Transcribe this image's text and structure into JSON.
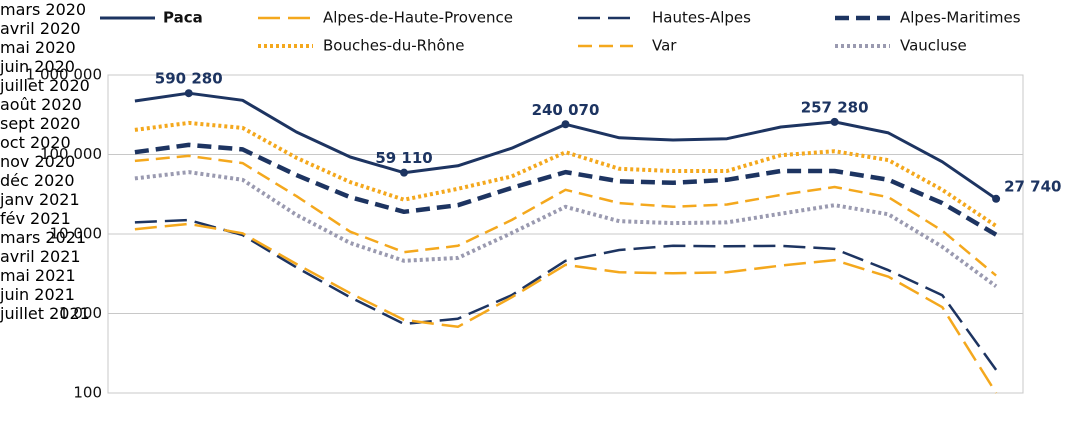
{
  "chart_data": {
    "type": "line",
    "log_y": true,
    "grid": true,
    "categories": [
      "mars 2020",
      "avril 2020",
      "mai 2020",
      "juin 2020",
      "juillet 2020",
      "août 2020",
      "sept 2020",
      "oct 2020",
      "nov 2020",
      "déc 2020",
      "janv 2021",
      "fév 2021",
      "mars 2021",
      "avril 2021",
      "mai 2021",
      "juin 2021",
      "juillet 2021"
    ],
    "ylim": [
      100,
      1000000
    ],
    "yticks": [
      100,
      {
        "value": 1000,
        "label": "1 000"
      },
      {
        "value": 10000,
        "label": "10 000"
      },
      {
        "value": 100000,
        "label": "100 000"
      },
      {
        "value": 1000000,
        "label": "1 000 000"
      }
    ],
    "series": [
      {
        "name": "Paca",
        "color": "#1d3461",
        "style": "solid",
        "values": [
          471000,
          590280,
          480000,
          192000,
          93000,
          59110,
          72000,
          120000,
          240070,
          162000,
          152000,
          158000,
          222000,
          257280,
          187000,
          81000,
          27740
        ],
        "value_labels": [
          null,
          "590 280",
          null,
          null,
          null,
          "59 110",
          null,
          null,
          "240 070",
          null,
          null,
          null,
          null,
          "257 280",
          null,
          null,
          "27 740"
        ]
      },
      {
        "name": "Alpes-de-Haute-Provence",
        "color": "#f4a81d",
        "style": "long-dash",
        "values": [
          11500,
          13400,
          10200,
          4200,
          1800,
          830,
          680,
          1600,
          4100,
          3300,
          3200,
          3300,
          4000,
          4700,
          2900,
          1200,
          100
        ]
      },
      {
        "name": "Hautes-Alpes",
        "color": "#1d3461",
        "style": "long-dash",
        "values": [
          14000,
          15000,
          9700,
          3800,
          1600,
          740,
          860,
          1700,
          4600,
          6300,
          7100,
          7000,
          7100,
          6500,
          3500,
          1700,
          195
        ]
      },
      {
        "name": "Alpes-Maritimes",
        "color": "#1d3461",
        "style": "thick-dash",
        "values": [
          107000,
          132000,
          116000,
          55000,
          29000,
          19000,
          23000,
          38000,
          60000,
          46000,
          44000,
          48000,
          62000,
          62000,
          48000,
          24500,
          9800
        ]
      },
      {
        "name": "Bouches-du-Rhône",
        "color": "#f4a81d",
        "style": "dot",
        "values": [
          204000,
          250000,
          216000,
          91000,
          45000,
          27000,
          37000,
          53000,
          107000,
          66000,
          62000,
          62000,
          98000,
          110000,
          85000,
          36000,
          12600
        ]
      },
      {
        "name": "Var",
        "color": "#f4a81d",
        "style": "dash",
        "values": [
          83000,
          96000,
          78000,
          30000,
          10700,
          5900,
          7100,
          15000,
          36000,
          24500,
          22000,
          23500,
          31000,
          39000,
          29000,
          11000,
          3000
        ]
      },
      {
        "name": "Vaucluse",
        "color": "#9a9ab0",
        "style": "dot",
        "values": [
          50000,
          60000,
          48000,
          17400,
          7700,
          4600,
          5000,
          10300,
          22000,
          14500,
          13700,
          14000,
          18000,
          23000,
          17700,
          6900,
          2200
        ]
      }
    ]
  }
}
